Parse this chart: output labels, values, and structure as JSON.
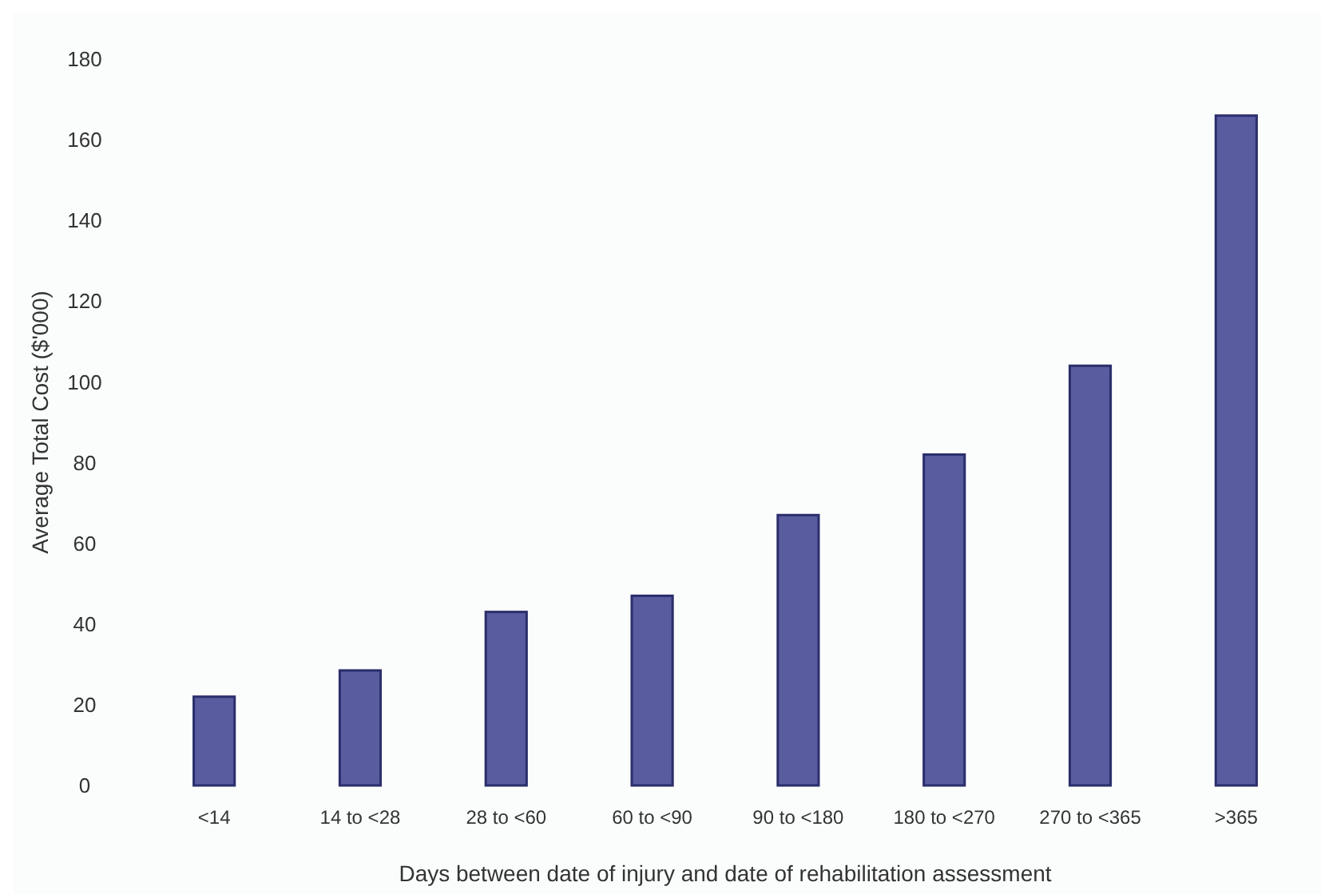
{
  "chart_data": {
    "type": "bar",
    "xlabel": "Days between date of injury and date of rehabilitation assessment",
    "ylabel": "Average Total Cost ($'000)",
    "categories": [
      "<14",
      "14 to <28",
      "28 to <60",
      "60 to <90",
      "90 to <180",
      "180 to <270",
      "270 to <365",
      ">365"
    ],
    "values": [
      22,
      28.5,
      43,
      47,
      67,
      82,
      104,
      166
    ],
    "color": "#595c9e",
    "ylim": [
      0,
      180
    ],
    "yticks": [
      0,
      20,
      40,
      60,
      80,
      100,
      120,
      140,
      160,
      180
    ],
    "grid": false
  }
}
